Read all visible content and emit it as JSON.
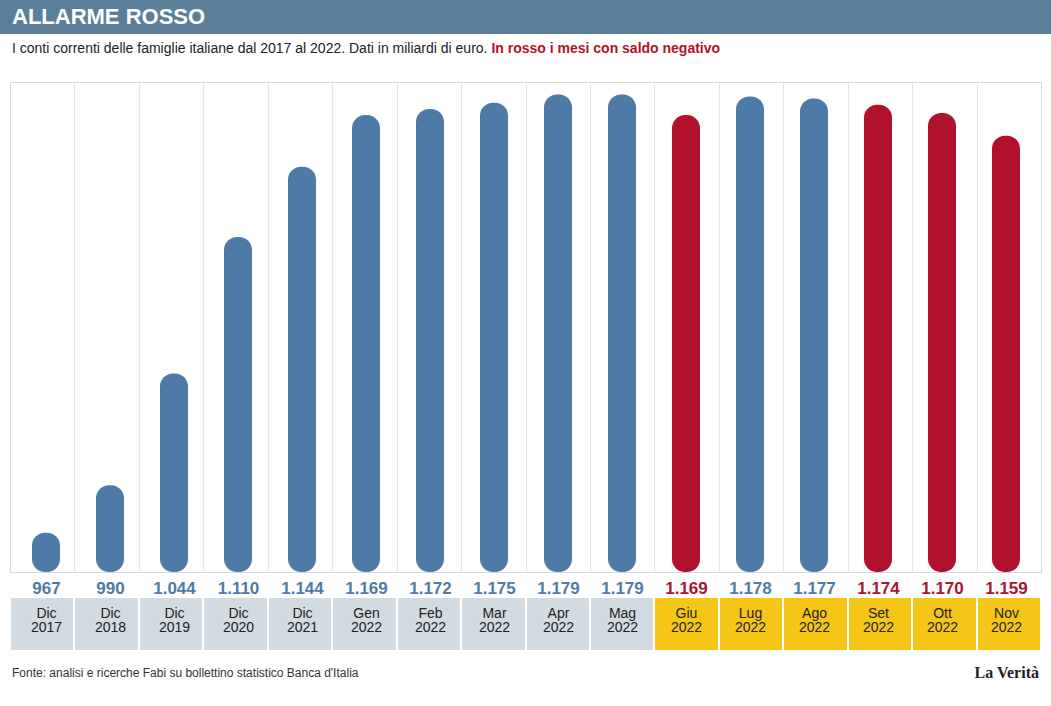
{
  "chart_data": {
    "type": "bar",
    "title": "ALLARME ROSSO",
    "subtitle": "I conti correnti delle famiglie italiane dal 2017 al 2022. Dati in miliardi di euro.",
    "annotations": [
      "In rosso i mesi con saldo negativo",
      "La Verità"
    ],
    "caption": "Fonte: analisi e ricerche Fabi su bollettino statistico Banca d'Italia",
    "categories": [
      "Dic 2017",
      "Dic 2018",
      "Dic 2019",
      "Dic 2020",
      "Dic 2021",
      "Gen 2022",
      "Feb 2022",
      "Mar 2022",
      "Apr 2022",
      "Mag 2022",
      "Giu 2022",
      "Lug 2022",
      "Ago 2022",
      "Set 2022",
      "Ott 2022",
      "Nov 2022"
    ],
    "values": [
      967,
      990,
      1044,
      1110,
      1144,
      1169,
      1172,
      1175,
      1179,
      1179,
      1169,
      1178,
      1177,
      1174,
      1170,
      1159
    ],
    "value_labels": [
      "967",
      "990",
      "1.044",
      "1.110",
      "1.144",
      "1.169",
      "1.172",
      "1.175",
      "1.179",
      "1.179",
      "1.169",
      "1.178",
      "1.177",
      "1.174",
      "1.170",
      "1.159"
    ],
    "colors": [
      "#4d7aa6",
      "#4d7aa6",
      "#4d7aa6",
      "#4d7aa6",
      "#4d7aa6",
      "#4d7aa6",
      "#4d7aa6",
      "#4d7aa6",
      "#4d7aa6",
      "#4d7aa6",
      "#b0122b",
      "#4d7aa6",
      "#4d7aa6",
      "#b0122b",
      "#b0122b",
      "#b0122b"
    ],
    "ylim": [
      948,
      1185
    ],
    "yticks": [],
    "grid": false,
    "data_labels": true,
    "tick_labels": "x"
  }
}
